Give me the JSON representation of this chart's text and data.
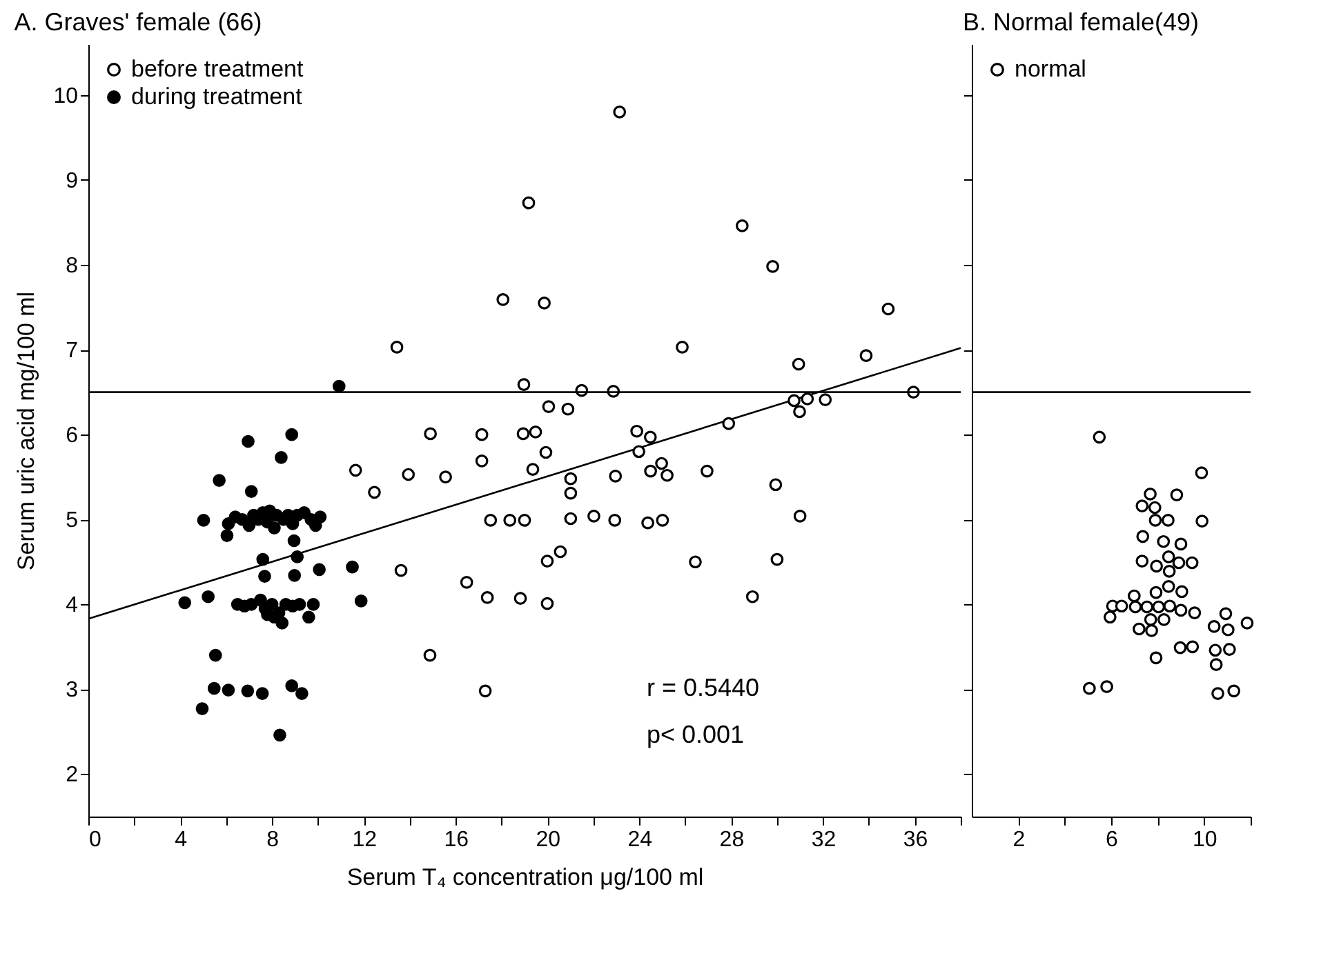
{
  "chart_data": [
    {
      "type": "scatter",
      "title": "A. Graves' female (66)",
      "xlabel": "Serum T₄ concentration   μg/100 ml",
      "ylabel": "Serum uric acid   mg/100 ml",
      "xlim": [
        0,
        38
      ],
      "ylim": [
        1.5,
        10.6
      ],
      "xticks": [
        0,
        {
          "value": 2,
          "label": null
        },
        4,
        {
          "value": 6,
          "label": null
        },
        8,
        {
          "value": 10,
          "label": null
        },
        12,
        {
          "value": 14,
          "label": null
        },
        16,
        {
          "value": 18,
          "label": null
        },
        20,
        {
          "value": 22,
          "label": null
        },
        24,
        {
          "value": 26,
          "label": null
        },
        28,
        {
          "value": 30,
          "label": null
        },
        32,
        {
          "value": 34,
          "label": null
        },
        36,
        {
          "value": 38,
          "label": null
        }
      ],
      "yticks": [
        2,
        3,
        4,
        5,
        6,
        7,
        8,
        9,
        10
      ],
      "legend": "top left",
      "marker": "circle",
      "grid": false,
      "annotations": [
        "r = 0.5440",
        "p< 0.001"
      ],
      "ref_lines": [
        {
          "axis": "y",
          "value": 6.5,
          "color": "#000000"
        }
      ],
      "series": [
        {
          "name": "before treatment",
          "color": "#000000",
          "x": [
            23.14,
            19.18,
            28.48,
            29.81,
            18.06,
            19.86,
            13.44,
            25.87,
            18.97,
            21.49,
            22.87,
            20.05,
            20.89,
            14.9,
            17.14,
            18.94,
            19.48,
            23.89,
            24.48,
            27.89,
            19.93,
            23.98,
            17.14,
            11.64,
            13.94,
            15.56,
            19.36,
            21.01,
            21.01,
            22.96,
            24.49,
            24.97,
            25.21,
            26.95,
            12.46,
            17.52,
            18.36,
            19.0,
            21.01,
            22.02,
            22.93,
            24.37,
            25.01,
            20.56,
            19.99,
            26.44,
            13.62,
            16.48,
            17.38,
            18.82,
            19.99,
            28.93,
            14.88,
            17.29,
            34.84,
            30.94,
            33.88,
            35.94,
            30.74,
            31.32,
            30.98,
            32.1,
            29.94,
            31.0,
            30.0
          ],
          "values": [
            9.8,
            8.73,
            8.46,
            7.98,
            7.59,
            7.55,
            7.03,
            7.03,
            6.59,
            6.52,
            6.51,
            6.33,
            6.3,
            6.01,
            6.0,
            6.01,
            6.03,
            6.04,
            5.97,
            6.13,
            5.79,
            5.8,
            5.69,
            5.58,
            5.53,
            5.5,
            5.59,
            5.48,
            5.31,
            5.51,
            5.57,
            5.66,
            5.52,
            5.57,
            5.32,
            4.99,
            4.99,
            4.99,
            5.01,
            5.04,
            4.99,
            4.96,
            4.99,
            4.62,
            4.51,
            4.5,
            4.4,
            4.26,
            4.08,
            4.07,
            4.01,
            4.09,
            3.4,
            2.98,
            7.48,
            6.83,
            6.93,
            6.5,
            6.4,
            6.42,
            6.27,
            6.41,
            5.41,
            5.04,
            4.53
          ]
        },
        {
          "name": "during treatment",
          "color": "#000000",
          "x": [
            6.96,
            8.86,
            8.4,
            5.7,
            7.1,
            5.02,
            6.04,
            8.96,
            7.6,
            9.1,
            7.68,
            8.98,
            10.06,
            11.5,
            11.88,
            4.2,
            5.22,
            8.44,
            9.6,
            5.54,
            5.48,
            6.1,
            6.94,
            7.58,
            8.86,
            9.3,
            4.96,
            8.34,
            10.92,
            6.1,
            6.4,
            6.7,
            7.0,
            7.2,
            7.4,
            7.6,
            7.8,
            7.9,
            8.1,
            8.2,
            8.5,
            8.7,
            8.9,
            9.1,
            9.4,
            9.7,
            9.9,
            10.1,
            6.5,
            6.8,
            7.1,
            7.5,
            7.7,
            7.8,
            8.0,
            8.1,
            8.3,
            8.6,
            8.9,
            9.2,
            9.8
          ],
          "values": [
            5.92,
            6.0,
            5.73,
            5.46,
            5.33,
            4.99,
            4.81,
            4.75,
            4.53,
            4.56,
            4.33,
            4.34,
            4.41,
            4.44,
            4.04,
            4.02,
            4.09,
            3.78,
            3.85,
            3.4,
            3.01,
            2.99,
            2.98,
            2.95,
            3.04,
            2.95,
            2.77,
            2.46,
            6.57,
            4.95,
            5.03,
            5.0,
            4.93,
            5.05,
            5.0,
            5.08,
            4.97,
            5.1,
            4.9,
            5.05,
            5.0,
            5.05,
            4.95,
            5.05,
            5.08,
            5.0,
            4.93,
            5.03,
            4.0,
            3.98,
            4.0,
            4.05,
            3.95,
            3.88,
            4.0,
            3.85,
            3.9,
            4.0,
            3.98,
            4.0,
            4.0
          ]
        },
        {
          "type": "line",
          "color": "#000000",
          "marker": "none",
          "x": [
            0,
            38
          ],
          "values": [
            3.83,
            7.02
          ]
        }
      ]
    },
    {
      "type": "scatter",
      "title": "B. Normal female(49)",
      "xlim": [
        0,
        12
      ],
      "ylim": [
        1.5,
        10.6
      ],
      "xticks": [
        2,
        {
          "value": 4,
          "label": null
        },
        6,
        {
          "value": 8,
          "label": null
        },
        10,
        {
          "value": 12,
          "label": null
        }
      ],
      "yticks": [
        {
          "value": 2,
          "label": null
        },
        {
          "value": 3,
          "label": null
        },
        {
          "value": 4,
          "label": null
        },
        {
          "value": 5,
          "label": null
        },
        {
          "value": 6,
          "label": null
        },
        {
          "value": 7,
          "label": null
        },
        {
          "value": 8,
          "label": null
        },
        {
          "value": 9,
          "label": null
        },
        {
          "value": 10,
          "label": null
        }
      ],
      "tick_labels": "x",
      "legend": "top left",
      "marker": "circle",
      "grid": false,
      "ref_lines": [
        {
          "axis": "y",
          "value": 6.5,
          "color": "#000000"
        }
      ],
      "series": [
        {
          "name": "normal",
          "color": "#000000",
          "x": [
            5.49,
            9.89,
            7.68,
            8.82,
            7.33,
            7.88,
            7.9,
            8.45,
            9.91,
            7.36,
            8.25,
            9.0,
            7.33,
            7.95,
            8.47,
            8.91,
            9.48,
            8.5,
            8.47,
            7.93,
            9.04,
            6.99,
            6.06,
            6.45,
            7.04,
            7.54,
            8.04,
            8.52,
            9.0,
            9.59,
            5.95,
            7.7,
            8.27,
            7.2,
            7.74,
            10.93,
            10.43,
            11.03,
            11.85,
            7.93,
            8.97,
            9.5,
            10.48,
            11.09,
            10.52,
            5.06,
            5.81,
            10.59,
            11.28
          ],
          "values": [
            5.97,
            5.55,
            5.3,
            5.29,
            5.16,
            5.14,
            4.99,
            4.99,
            4.98,
            4.8,
            4.74,
            4.71,
            4.51,
            4.45,
            4.56,
            4.49,
            4.49,
            4.39,
            4.21,
            4.14,
            4.15,
            4.1,
            3.98,
            3.98,
            3.97,
            3.97,
            3.97,
            3.98,
            3.93,
            3.9,
            3.85,
            3.82,
            3.82,
            3.71,
            3.69,
            3.89,
            3.74,
            3.7,
            3.78,
            3.37,
            3.49,
            3.5,
            3.46,
            3.47,
            3.29,
            3.01,
            3.03,
            2.95,
            2.98
          ]
        }
      ]
    }
  ]
}
